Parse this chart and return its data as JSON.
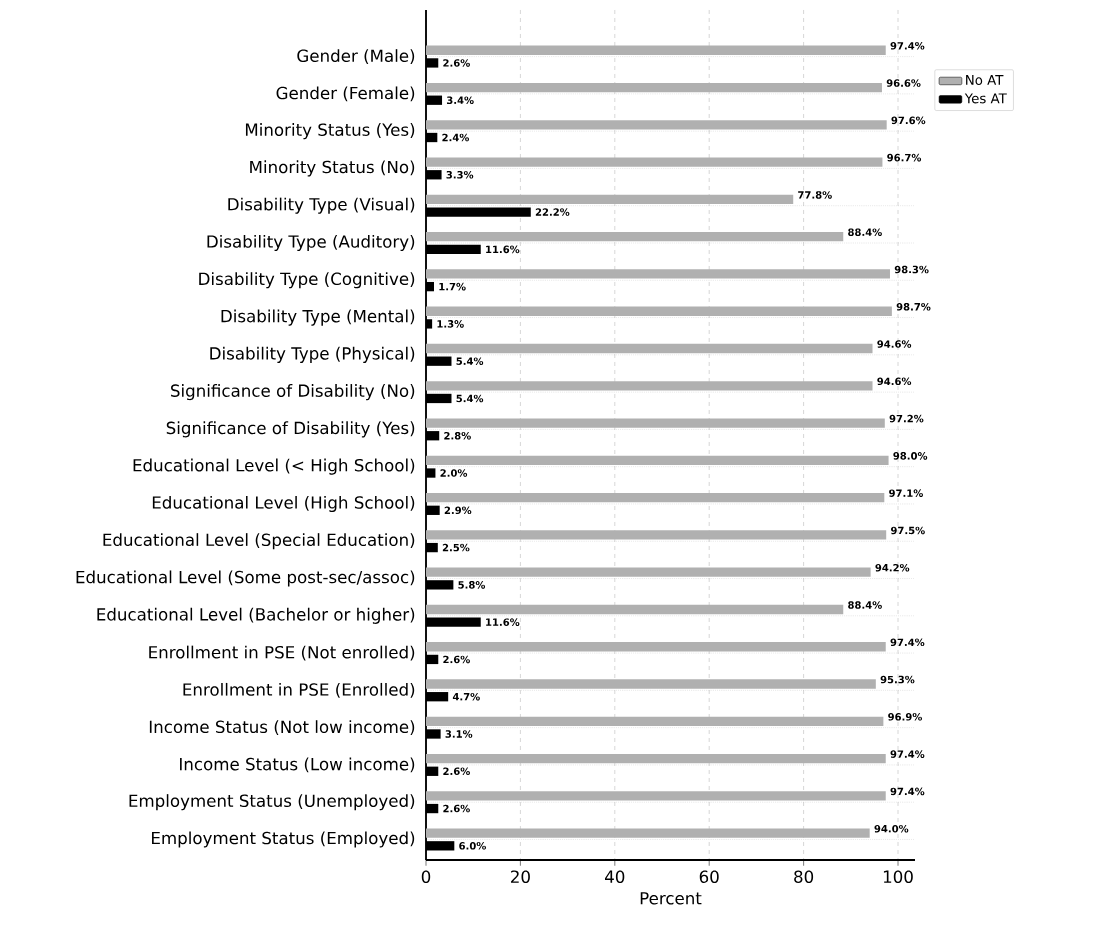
{
  "chart_data": {
    "type": "bar",
    "orientation": "horizontal",
    "xlabel": "Percent",
    "categories": [
      "Gender (Male)",
      "Gender (Female)",
      "Minority Status (Yes)",
      "Minority Status (No)",
      "Disability Type (Visual)",
      "Disability Type (Auditory)",
      "Disability Type (Cognitive)",
      "Disability Type (Mental)",
      "Disability Type (Physical)",
      "Significance of Disability (No)",
      "Significance of Disability (Yes)",
      "Educational Level (< High School)",
      "Educational Level (High School)",
      "Educational Level (Special Education)",
      "Educational Level (Some post-sec/assoc)",
      "Educational Level (Bachelor or higher)",
      "Enrollment in PSE (Not enrolled)",
      "Enrollment in PSE (Enrolled)",
      "Income Status (Not low income)",
      "Income Status (Low income)",
      "Employment Status (Unemployed)",
      "Employment Status (Employed)"
    ],
    "series": [
      {
        "name": "No AT",
        "color": "#b0b0b0",
        "values": [
          97.4,
          96.6,
          97.6,
          96.7,
          77.8,
          88.4,
          98.3,
          98.7,
          94.6,
          94.6,
          97.2,
          98.0,
          97.1,
          97.5,
          94.2,
          88.4,
          97.4,
          95.3,
          96.9,
          97.4,
          97.4,
          94.0
        ],
        "value_labels": [
          "97.4%",
          "96.6%",
          "97.6%",
          "96.7%",
          "77.8%",
          "88.4%",
          "98.3%",
          "98.7%",
          "94.6%",
          "94.6%",
          "97.2%",
          "98.0%",
          "97.1%",
          "97.5%",
          "94.2%",
          "88.4%",
          "97.4%",
          "95.3%",
          "96.9%",
          "97.4%",
          "97.4%",
          "94.0%"
        ]
      },
      {
        "name": "Yes AT",
        "color": "#000000",
        "values": [
          2.6,
          3.4,
          2.4,
          3.3,
          22.2,
          11.6,
          1.7,
          1.3,
          5.4,
          5.4,
          2.8,
          2.0,
          2.9,
          2.5,
          5.8,
          11.6,
          2.6,
          4.7,
          3.1,
          2.6,
          2.6,
          6.0
        ],
        "value_labels": [
          "2.6%",
          "3.4%",
          "2.4%",
          "3.3%",
          "22.2%",
          "11.6%",
          "1.7%",
          "1.3%",
          "5.4%",
          "5.4%",
          "2.8%",
          "2.0%",
          "2.9%",
          "2.5%",
          "5.8%",
          "11.6%",
          "2.6%",
          "4.7%",
          "3.1%",
          "2.6%",
          "2.6%",
          "6.0%"
        ]
      }
    ],
    "xlim": [
      0,
      103.6
    ],
    "xticks": [
      0,
      20,
      40,
      60,
      80,
      100
    ],
    "grid": true,
    "legend": "top right"
  }
}
